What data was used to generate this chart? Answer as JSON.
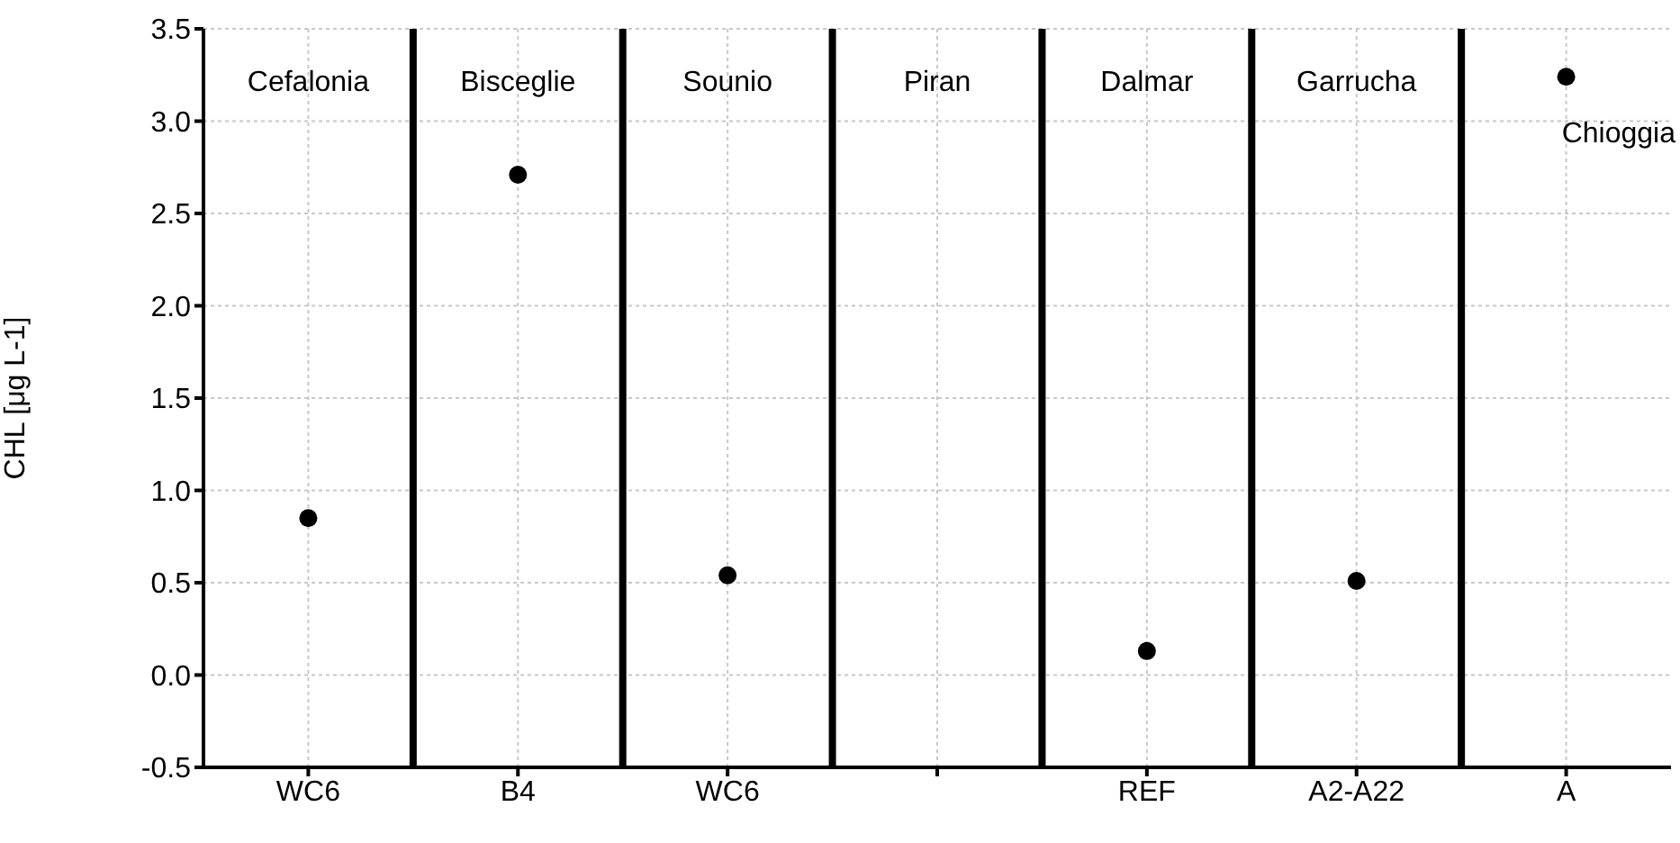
{
  "chart_data": {
    "type": "scatter",
    "ylabel": "CHL [μg L-1]",
    "categories": [
      "WC6",
      "B4",
      "WC6",
      null,
      "REF",
      "A2-A22",
      "A"
    ],
    "values": [
      0.85,
      2.71,
      0.54,
      null,
      0.13,
      0.51,
      3.24
    ],
    "color": "#000000",
    "marker": "circle",
    "ylim": [
      -0.5,
      3.5
    ],
    "yticks": [
      -0.5,
      {
        "value": 0,
        "label": "0.0"
      },
      0.5,
      {
        "value": 1,
        "label": "1.0"
      },
      1.5,
      {
        "value": 2,
        "label": "2.0"
      },
      2.5,
      {
        "value": 3,
        "label": "3.0"
      },
      3.5
    ],
    "grid": true,
    "annotations": [
      "Cefalonia",
      "Bisceglie",
      "Sounio",
      "Piran",
      "Dalmar",
      "Garrucha",
      "Chioggia"
    ]
  }
}
